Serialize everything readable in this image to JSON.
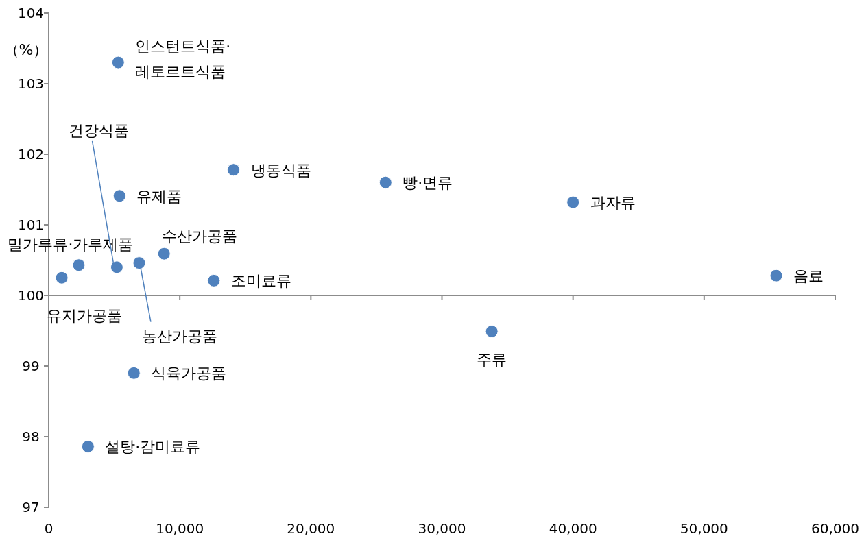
{
  "chart_data": {
    "type": "scatter",
    "ylabel": "（%）",
    "marker": "circle",
    "grid": false,
    "xlim": [
      0,
      60000
    ],
    "xticks": [
      0,
      {
        "value": 10000,
        "label": "10,000"
      },
      {
        "value": 20000,
        "label": "20,000"
      },
      {
        "value": 30000,
        "label": "30,000"
      },
      {
        "value": 40000,
        "label": "40,000"
      },
      {
        "value": 50000,
        "label": "50,000"
      },
      {
        "value": 60000,
        "label": "60,000"
      }
    ],
    "ylim": [
      97,
      104
    ],
    "yticks": [
      97,
      98,
      99,
      100,
      101,
      102,
      103,
      104
    ],
    "ref_lines": [
      {
        "axis": "y",
        "value": 100,
        "color": "#8c8c8c"
      }
    ],
    "series": [
      {
        "color": "#4f81bd",
        "x": [
          5300,
          5400,
          14100,
          25700,
          40000,
          55500,
          8800,
          2300,
          1000,
          5200,
          6900,
          12600,
          33800,
          6500,
          3000
        ],
        "values": [
          103.3,
          101.41,
          101.78,
          101.6,
          101.32,
          100.28,
          100.59,
          100.43,
          100.25,
          100.4,
          100.46,
          100.21,
          99.49,
          98.9,
          97.86
        ]
      }
    ],
    "annotations": [
      {
        "text": "인스턴트식품·레토르트식품",
        "x": 5300,
        "y": 103.3
      },
      {
        "text": "유제품",
        "x": 5400,
        "y": 101.41
      },
      {
        "text": "냉동식품",
        "x": 14100,
        "y": 101.78
      },
      {
        "text": "빵·면류",
        "x": 25700,
        "y": 101.6
      },
      {
        "text": "과자류",
        "x": 40000,
        "y": 101.32
      },
      {
        "text": "음료",
        "x": 55500,
        "y": 100.28
      },
      {
        "text": "수산가공품",
        "x": 8800,
        "y": 100.59
      },
      {
        "text": "밀가루류·가루제품",
        "x": 2300,
        "y": 100.43
      },
      {
        "text": "유지가공품",
        "x": 1000,
        "y": 100.25
      },
      {
        "text": "건강식품",
        "x": 5200,
        "y": 100.4
      },
      {
        "text": "농산가공품",
        "x": 6900,
        "y": 100.46
      },
      {
        "text": "조미료류",
        "x": 12600,
        "y": 100.21
      },
      {
        "text": "주류",
        "x": 33800,
        "y": 99.49
      },
      {
        "text": "식육가공품",
        "x": 6500,
        "y": 98.9
      },
      {
        "text": "설탕·감미료류",
        "x": 3000,
        "y": 97.86
      }
    ]
  }
}
